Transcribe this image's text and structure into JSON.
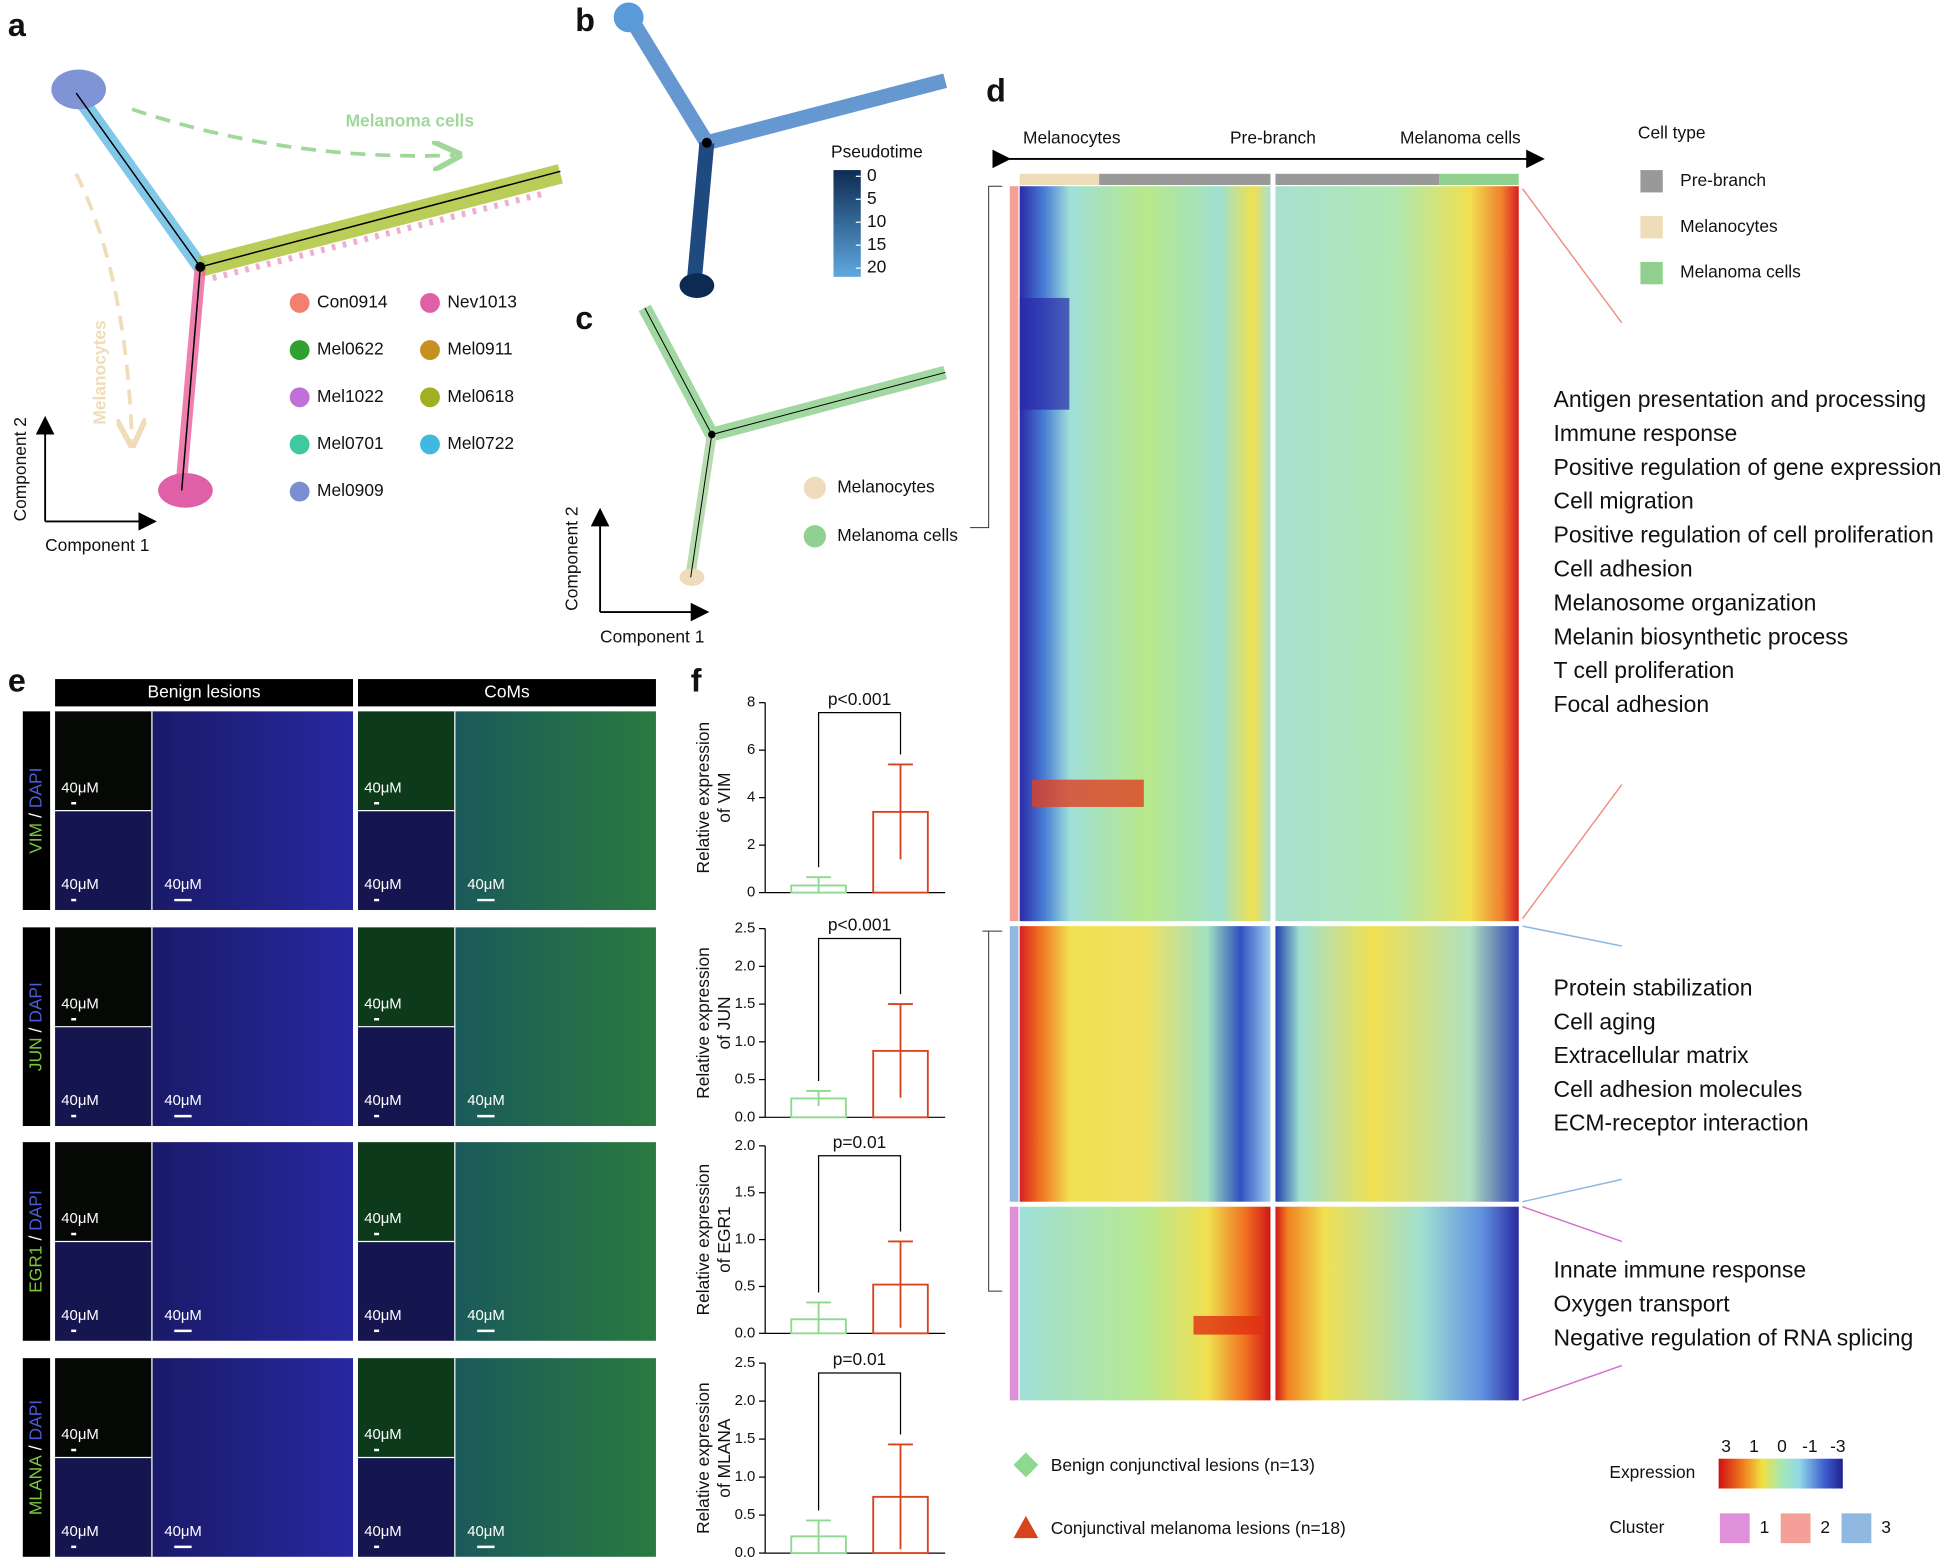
{
  "panel_labels": [
    "a",
    "b",
    "c",
    "d",
    "e",
    "f"
  ],
  "a": {
    "samples": [
      {
        "name": "Con0914",
        "color": "#f08070"
      },
      {
        "name": "Nev1013",
        "color": "#e060a8"
      },
      {
        "name": "Mel0622",
        "color": "#30a030"
      },
      {
        "name": "Mel0911",
        "color": "#c89020"
      },
      {
        "name": "Mel1022",
        "color": "#c070d8"
      },
      {
        "name": "Mel0618",
        "color": "#a0b020"
      },
      {
        "name": "Mel0701",
        "color": "#40c8a0"
      },
      {
        "name": "Mel0722",
        "color": "#40b8e0"
      },
      {
        "name": "Mel0909",
        "color": "#7890d0"
      }
    ],
    "melanoma_arrow": "Melanoma cells",
    "melanocyte_arrow": "Melanocytes",
    "x_axis": "Component 1",
    "y_axis": "Component 2"
  },
  "b": {
    "colorbar_title": "Pseudotime",
    "colorbar_ticks": [
      0,
      5,
      10,
      15,
      20
    ],
    "colorbar_lim": [
      0,
      20
    ]
  },
  "c": {
    "legend": [
      {
        "name": "Melanocytes",
        "color": "#eedcbc"
      },
      {
        "name": "Melanoma cells",
        "color": "#90d090"
      }
    ],
    "x_axis": "Component 1",
    "y_axis": "Component 2"
  },
  "d": {
    "header": [
      "Melanocytes",
      "Pre-branch",
      "Melanoma cells"
    ],
    "cell_type_title": "Cell type",
    "cell_types": [
      {
        "name": "Pre-branch",
        "color": "#999999"
      },
      {
        "name": "Melanocytes",
        "color": "#efdcb8"
      },
      {
        "name": "Melanoma cells",
        "color": "#8fd08f"
      }
    ],
    "term_groups": [
      [
        "Antigen presentation and processing",
        "Immune response",
        "Positive regulation of gene expression",
        "Cell migration",
        "Positive regulation of cell proliferation",
        "Cell adhesion",
        "Melanosome organization",
        "Melanin biosynthetic process",
        "T cell proliferation",
        "Focal adhesion"
      ],
      [
        "Protein stabilization",
        "Cell aging",
        "Extracellular matrix",
        "Cell adhesion molecules",
        "ECM-receptor interaction"
      ],
      [
        "Innate immune response",
        "Oxygen transport",
        "Negative regulation of RNA splicing"
      ]
    ],
    "expression_title": "Expression",
    "expression_ticks": [
      3,
      1,
      0,
      -1,
      -3
    ],
    "cluster_title": "Cluster",
    "clusters": [
      {
        "name": "1",
        "color": "#e090d8"
      },
      {
        "name": "2",
        "color": "#f4a098"
      },
      {
        "name": "3",
        "color": "#90b8e0"
      }
    ]
  },
  "e": {
    "columns": [
      "Benign lesions",
      "CoMs"
    ],
    "markers": [
      "VIM",
      "JUN",
      "EGR1",
      "MLANA"
    ],
    "separator": "/",
    "counterstain": "DAPI",
    "scale_bar": "40μM"
  },
  "f": {
    "charts": [
      {
        "type": "bar",
        "y_label": [
          "Relative expression",
          "of VIM"
        ],
        "p_value": "p<0.001",
        "values": [
          0.3,
          3.4
        ],
        "errors": [
          0.35,
          2.0
        ],
        "ylim": [
          0,
          8
        ],
        "yticks": [
          0,
          2,
          4,
          6,
          8
        ]
      },
      {
        "type": "bar",
        "y_label": [
          "Relative expression",
          "of JUN"
        ],
        "p_value": "p<0.001",
        "values": [
          0.25,
          0.88
        ],
        "errors": [
          0.1,
          0.62
        ],
        "ylim": [
          0,
          2.5
        ],
        "yticks": [
          {
            "value": 0,
            "label": "0.0"
          },
          0.5,
          {
            "value": 1,
            "label": "1.0"
          },
          1.5,
          {
            "value": 2,
            "label": "2.0"
          },
          2.5
        ]
      },
      {
        "type": "bar",
        "y_label": [
          "Relative expression",
          "of EGR1"
        ],
        "p_value": "p=0.01",
        "values": [
          0.15,
          0.52
        ],
        "errors": [
          0.18,
          0.46
        ],
        "ylim": [
          0,
          2
        ],
        "yticks": [
          {
            "value": 0,
            "label": "0.0"
          },
          0.5,
          {
            "value": 1,
            "label": "1.0"
          },
          1.5,
          {
            "value": 2,
            "label": "2.0"
          }
        ]
      },
      {
        "type": "bar",
        "y_label": [
          "Relative expression",
          "of MLANA"
        ],
        "p_value": "p=0.01",
        "values": [
          0.22,
          0.74
        ],
        "errors": [
          0.21,
          0.69
        ],
        "ylim": [
          0,
          2.5
        ],
        "yticks": [
          {
            "value": 0,
            "label": "0.0"
          },
          0.5,
          {
            "value": 1,
            "label": "1.0"
          },
          1.5,
          {
            "value": 2,
            "label": "2.0"
          },
          2.5
        ]
      }
    ],
    "legend": [
      {
        "name": "Benign conjunctival lesions (n=13)",
        "color": "#8fd88f"
      },
      {
        "name": "Conjunctival melanoma lesions (n=18)",
        "color": "#d8441f"
      }
    ]
  }
}
